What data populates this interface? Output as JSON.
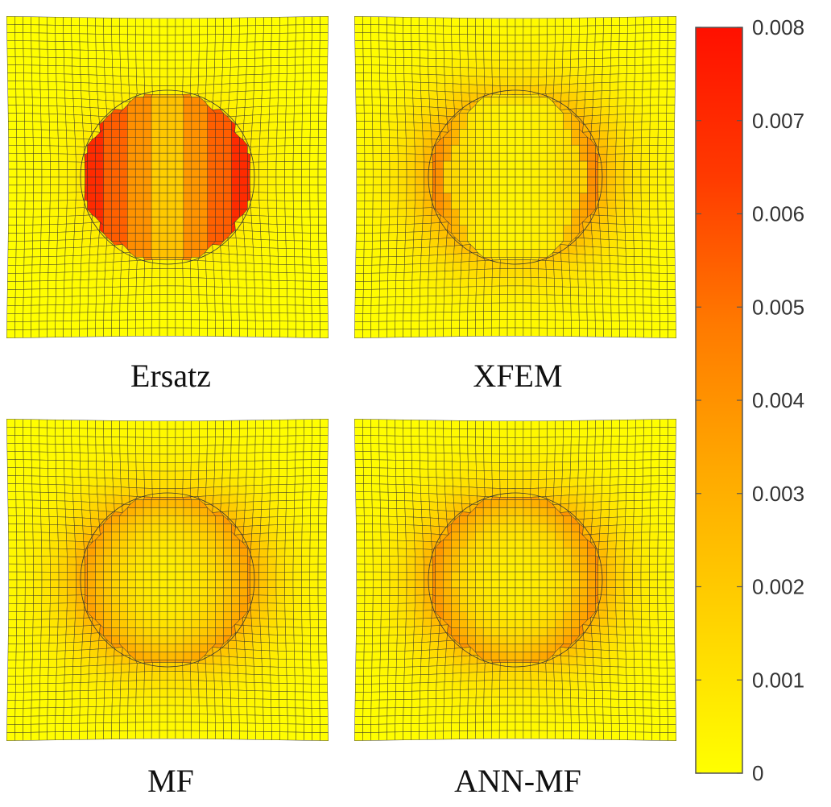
{
  "panels": [
    {
      "label": "Ersatz",
      "pattern": "ersatz"
    },
    {
      "label": "XFEM",
      "pattern": "xfem"
    },
    {
      "label": "MF",
      "pattern": "mf"
    },
    {
      "label": "ANN-MF",
      "pattern": "annmf"
    }
  ],
  "colorbar": {
    "min": 0,
    "max": 0.008,
    "ticks": [
      "0",
      "0.001",
      "0.002",
      "0.003",
      "0.004",
      "0.005",
      "0.006",
      "0.007",
      "0.008"
    ],
    "colors": [
      "#ffff00",
      "#ffd400",
      "#ffaa00",
      "#ff7a00",
      "#ff3a00",
      "#ff1000"
    ]
  },
  "mesh": {
    "grid_color": "#2a2a2a"
  }
}
